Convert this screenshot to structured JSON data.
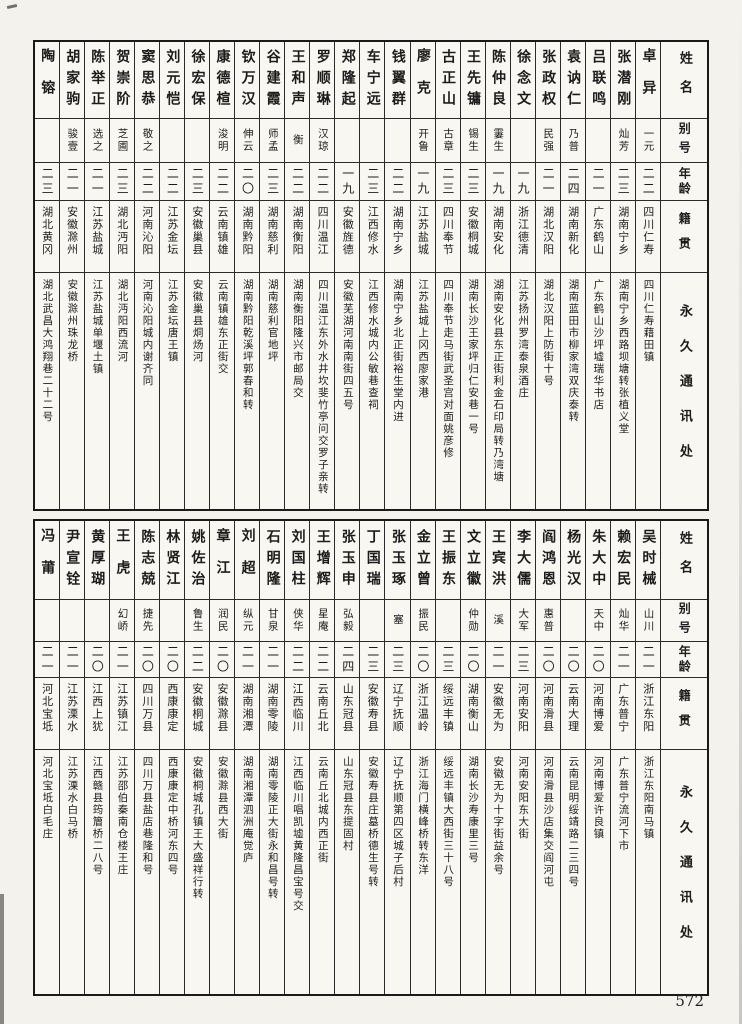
{
  "page": {
    "number": "572"
  },
  "style": {
    "paper": "#f8f7f2",
    "ink": "#1c1c1c"
  },
  "headers": {
    "name": "姓名",
    "alias": "别号",
    "age": "年龄",
    "native": "籍贯",
    "address": "永久通讯处"
  },
  "tables": [
    {
      "entries": [
        {
          "name": "卓异",
          "alias": "一元",
          "age": "二二",
          "native": "四川仁寿",
          "address": "四川仁寿藉田镇"
        },
        {
          "name": "张潜刚",
          "alias": "灿芳",
          "age": "二三",
          "native": "湖南宁乡",
          "address": "湖南宁乡西路坝塘转张植义堂"
        },
        {
          "name": "吕联鸣",
          "alias": "",
          "age": "二一",
          "native": "广东鹤山",
          "address": "广东鹤山沙坪墟瑞华书店"
        },
        {
          "name": "袁讷仁",
          "alias": "乃普",
          "age": "二四",
          "native": "湖南新化",
          "address": "湖南蓝田市柳家湾双庆泰转"
        },
        {
          "name": "张政权",
          "alias": "民强",
          "age": "二一",
          "native": "湖北汉阳",
          "address": "湖北汉阳上防街十号"
        },
        {
          "name": "徐念文",
          "alias": "",
          "age": "一九",
          "native": "浙江德清",
          "address": "江苏扬州罗湾泰泉酒庄"
        },
        {
          "name": "陈仲良",
          "alias": "霋生",
          "age": "一九",
          "native": "湖南安化",
          "address": "湖南安化县东正街利金石印局转乃湾塘"
        },
        {
          "name": "王先镛",
          "alias": "锡生",
          "age": "二三",
          "native": "安徽桐城",
          "address": "湖南长沙王家坪归仁安巷一号"
        },
        {
          "name": "古正山",
          "alias": "古章",
          "age": "二三",
          "native": "四川奉节",
          "address": "四川奉节走马街武圣宫对面姚彦修"
        },
        {
          "name": "廖克",
          "alias": "开鲁",
          "age": "一九",
          "native": "江苏盐城",
          "address": "江苏盐城上冈西廖家港"
        },
        {
          "name": "钱翼群",
          "alias": "",
          "age": "二二",
          "native": "湖南宁乡",
          "address": "湖南宁乡北正街裕生堂内进"
        },
        {
          "name": "车宁远",
          "alias": "",
          "age": "二三",
          "native": "江西修水",
          "address": "江西修水城内公敏巷查祠"
        },
        {
          "name": "郑隆起",
          "alias": "",
          "age": "一九",
          "native": "安徽旌德",
          "address": "安徽芜湖河南南街四五号"
        },
        {
          "name": "罗顺琳",
          "alias": "汉琼",
          "age": "二二",
          "native": "四川温江",
          "address": "四川温江东外水井坎斐竹亭问交罗子亲转"
        },
        {
          "name": "王和声",
          "alias": "衡",
          "age": "二二",
          "native": "湖南衡阳",
          "address": "湖南衡阳隆兴市邮局交"
        },
        {
          "name": "谷建霞",
          "alias": "师孟",
          "age": "二三",
          "native": "湖南慈利",
          "address": "湖南慈利官地坪"
        },
        {
          "name": "钦万汉",
          "alias": "伸云",
          "age": "二〇",
          "native": "湖南黔阳",
          "address": "湖南黔阳乾溪坪郭春和转"
        },
        {
          "name": "康德楦",
          "alias": "浚明",
          "age": "二二",
          "native": "云南镇雄",
          "address": "云南镇雄东正街交"
        },
        {
          "name": "徐宏保",
          "alias": "",
          "age": "二三",
          "native": "安徽巢县",
          "address": "安徽巢县烔炀河"
        },
        {
          "name": "刘元恺",
          "alias": "",
          "age": "二二",
          "native": "江苏金坛",
          "address": "江苏金坛唐王镇"
        },
        {
          "name": "窦思恭",
          "alias": "敬之",
          "age": "二二",
          "native": "河南沁阳",
          "address": "河南沁阳城内谢齐同"
        },
        {
          "name": "贺崇阶",
          "alias": "芝圃",
          "age": "二三",
          "native": "湖北沔阳",
          "address": "湖北沔阳西流河"
        },
        {
          "name": "陈举正",
          "alias": "选之",
          "age": "二一",
          "native": "江苏盐城",
          "address": "江苏盐城单堰土镇"
        },
        {
          "name": "胡家驹",
          "alias": "骏壹",
          "age": "二一",
          "native": "安徽滁州",
          "address": "安徽滁州珠龙桥"
        },
        {
          "name": "陶镕",
          "alias": "",
          "age": "二三",
          "native": "湖北黄冈",
          "address": "湖北武昌大鸿翔巷二十二号"
        }
      ]
    },
    {
      "entries": [
        {
          "name": "吴时械",
          "alias": "山川",
          "age": "二一",
          "native": "浙江东阳",
          "address": "浙江东阳南马镇"
        },
        {
          "name": "赖宏民",
          "alias": "灿华",
          "age": "二一",
          "native": "广东普宁",
          "address": "广东普宁流河下市"
        },
        {
          "name": "朱大中",
          "alias": "天中",
          "age": "二〇",
          "native": "河南博爱",
          "address": "河南博爱许良镇"
        },
        {
          "name": "杨光汉",
          "alias": "",
          "age": "二〇",
          "native": "云南大理",
          "address": "云南昆明绥靖路二三四号"
        },
        {
          "name": "阎鸿恩",
          "alias": "惠普",
          "age": "二〇",
          "native": "河南滑县",
          "address": "河南滑县沙店集交阎河屯"
        },
        {
          "name": "李大儒",
          "alias": "大军",
          "age": "二三",
          "native": "河南安阳",
          "address": "河南安阳东大街"
        },
        {
          "name": "王宾洪",
          "alias": "溪",
          "age": "二一",
          "native": "安徽无为",
          "address": "安徽无为十字街益余号"
        },
        {
          "name": "文立徽",
          "alias": "仲勋",
          "age": "二〇",
          "native": "湖南衡山",
          "address": "湖南长沙寿康里三号"
        },
        {
          "name": "王振东",
          "alias": "",
          "age": "二三",
          "native": "绥远丰镇",
          "address": "绥远丰镇大西街三十八号"
        },
        {
          "name": "金立曾",
          "alias": "振民",
          "age": "二〇",
          "native": "浙江温岭",
          "address": "浙江海门横峰桥转东洋"
        },
        {
          "name": "张玉琢",
          "alias": "塞",
          "age": "二三",
          "native": "辽宁抚顺",
          "address": "辽宁抚顺第四区城子后村"
        },
        {
          "name": "丁国瑞",
          "alias": "",
          "age": "二三",
          "native": "安徽寿县",
          "address": "安徽寿县庄墓桥德生号转"
        },
        {
          "name": "张玉申",
          "alias": "弘毅",
          "age": "二四",
          "native": "山东冠县",
          "address": "山东冠县东提固村"
        },
        {
          "name": "王增辉",
          "alias": "星庵",
          "age": "二二",
          "native": "云南丘北",
          "address": "云南丘北城内西正街"
        },
        {
          "name": "刘国柱",
          "alias": "侠华",
          "age": "二二",
          "native": "江西临川",
          "address": "江西临川唱凯墟黄隆昌宝号交"
        },
        {
          "name": "石明隆",
          "alias": "甘泉",
          "age": "二一",
          "native": "湖南零陵",
          "address": "湖南零陵正大街永和昌号转"
        },
        {
          "name": "刘超",
          "alias": "纵元",
          "age": "二一",
          "native": "湖南湘潭",
          "address": "湖南湘潭泗洲庵觉庐"
        },
        {
          "name": "章江",
          "alias": "润民",
          "age": "二〇",
          "native": "安徽滁县",
          "address": "安徽滁县西大街"
        },
        {
          "name": "姚佐治",
          "alias": "鲁生",
          "age": "二二",
          "native": "安徽桐城",
          "address": "安徽桐城孔镇王大盛祥行转"
        },
        {
          "name": "林贤江",
          "alias": "",
          "age": "二〇",
          "native": "西康康定",
          "address": "西康康定中桥河东四号"
        },
        {
          "name": "陈志兢",
          "alias": "捷先",
          "age": "二〇",
          "native": "四川万县",
          "address": "四川万县盐店巷隆和号"
        },
        {
          "name": "王虎",
          "alias": "幻峤",
          "age": "二一",
          "native": "江苏镇江",
          "address": "江苏邵伯秦南仓楼王庄"
        },
        {
          "name": "黄厚瑚",
          "alias": "",
          "age": "二〇",
          "native": "江西上犹",
          "address": "江西赣县筠篃桥二八号"
        },
        {
          "name": "尹宣铨",
          "alias": "",
          "age": "二一",
          "native": "江苏溧水",
          "address": "江苏溧水白马桥"
        },
        {
          "name": "冯莆",
          "alias": "",
          "age": "二一",
          "native": "河北宝坻",
          "address": "河北宝坻白毛庄"
        }
      ]
    }
  ]
}
